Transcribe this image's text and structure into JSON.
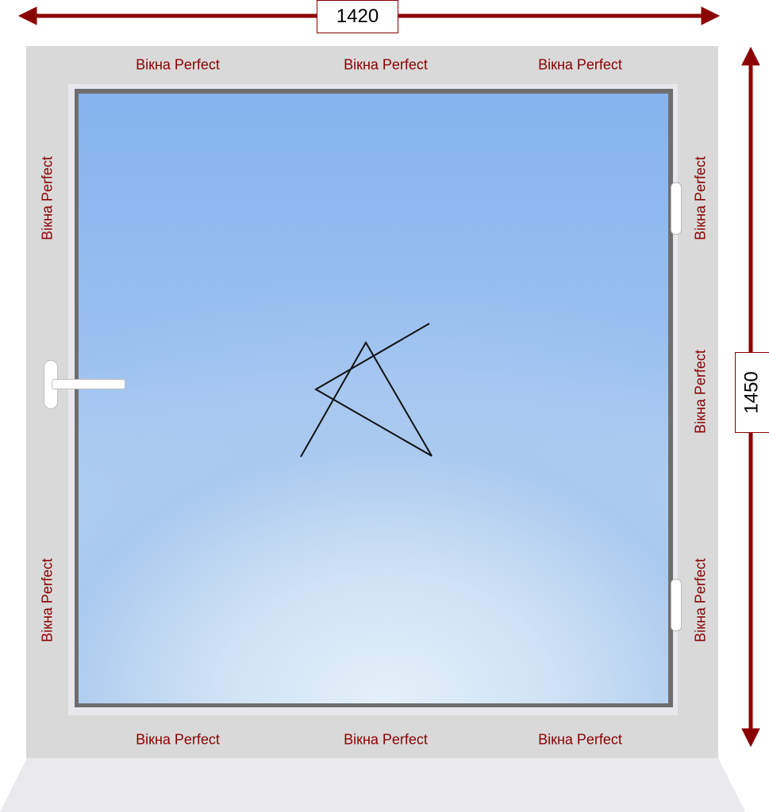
{
  "dimensions": {
    "width": "1420",
    "height": "1450"
  },
  "brand_labels": {
    "top_left": "Вікна Perfect",
    "top_center": "Вікна Perfect",
    "top_right": "Вікна Perfect",
    "bottom_left": "Вікна Perfect",
    "bottom_center": "Вікна Perfect",
    "bottom_right": "Вікна Perfect",
    "left_upper": "Вікна Perfect",
    "left_lower": "Вікна Perfect",
    "right_upper": "Вікна Perfect",
    "right_middle": "Вікна Perfect",
    "right_lower": "Вікна Perfect"
  },
  "colors": {
    "dimension_arrow": "#8b0000",
    "brand_text": "#8b0000",
    "frame": "#d9d9d9",
    "glass": "#9cc1f0"
  },
  "icons": {
    "handle": "window-handle-icon",
    "hinge": "hinge-icon",
    "opening_symbol": "tilt-turn-opening-icon"
  }
}
